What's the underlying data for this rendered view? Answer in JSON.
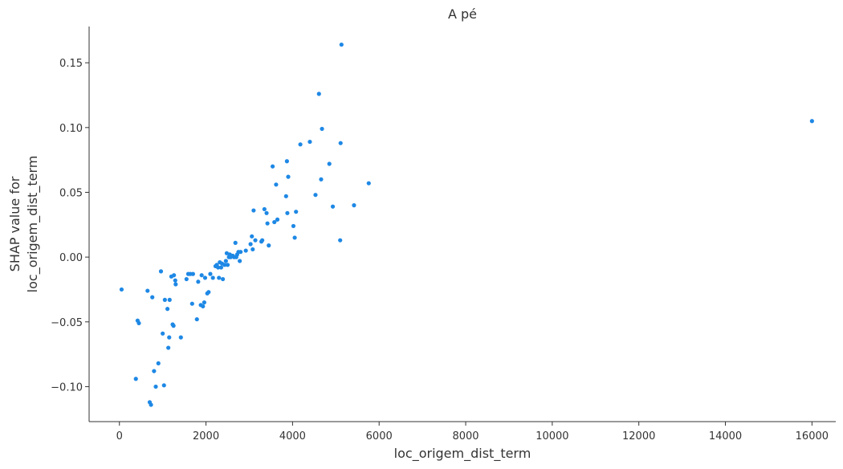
{
  "chart_data": {
    "type": "scatter",
    "title": "A pé",
    "xlabel": "loc_origem_dist_term",
    "ylabel_lines": [
      "SHAP value for",
      "loc_origem_dist_term"
    ],
    "xlim": [
      -700,
      16550
    ],
    "ylim": [
      -0.127,
      0.178
    ],
    "x_ticks": [
      0,
      2000,
      4000,
      6000,
      8000,
      10000,
      12000,
      14000,
      16000
    ],
    "x_tick_labels": [
      "0",
      "2000",
      "4000",
      "6000",
      "8000",
      "10000",
      "12000",
      "14000",
      "16000"
    ],
    "y_ticks": [
      -0.1,
      -0.05,
      0.0,
      0.05,
      0.1,
      0.15
    ],
    "y_tick_labels": [
      "−0.10",
      "−0.05",
      "0.00",
      "0.05",
      "0.10",
      "0.15"
    ],
    "grid": false,
    "point_color": "#1e88e5",
    "points": [
      [
        50,
        -0.025
      ],
      [
        380,
        -0.094
      ],
      [
        420,
        -0.049
      ],
      [
        450,
        -0.051
      ],
      [
        650,
        -0.026
      ],
      [
        700,
        -0.112
      ],
      [
        730,
        -0.114
      ],
      [
        760,
        -0.031
      ],
      [
        800,
        -0.088
      ],
      [
        840,
        -0.1
      ],
      [
        900,
        -0.082
      ],
      [
        960,
        -0.011
      ],
      [
        1000,
        -0.059
      ],
      [
        1030,
        -0.099
      ],
      [
        1050,
        -0.033
      ],
      [
        1110,
        -0.04
      ],
      [
        1130,
        -0.07
      ],
      [
        1150,
        -0.062
      ],
      [
        1160,
        -0.033
      ],
      [
        1200,
        -0.015
      ],
      [
        1230,
        -0.052
      ],
      [
        1250,
        -0.053
      ],
      [
        1260,
        -0.014
      ],
      [
        1290,
        -0.018
      ],
      [
        1300,
        -0.021
      ],
      [
        1420,
        -0.062
      ],
      [
        1550,
        -0.017
      ],
      [
        1590,
        -0.013
      ],
      [
        1640,
        -0.013
      ],
      [
        1680,
        -0.036
      ],
      [
        1700,
        -0.013
      ],
      [
        1790,
        -0.048
      ],
      [
        1820,
        -0.019
      ],
      [
        1880,
        -0.037
      ],
      [
        1900,
        -0.014
      ],
      [
        1930,
        -0.038
      ],
      [
        1960,
        -0.035
      ],
      [
        1980,
        -0.016
      ],
      [
        2030,
        -0.028
      ],
      [
        2060,
        -0.027
      ],
      [
        2100,
        -0.013
      ],
      [
        2160,
        -0.016
      ],
      [
        2220,
        -0.007
      ],
      [
        2250,
        -0.006
      ],
      [
        2280,
        -0.008
      ],
      [
        2300,
        -0.016
      ],
      [
        2320,
        -0.004
      ],
      [
        2350,
        -0.008
      ],
      [
        2370,
        -0.005
      ],
      [
        2390,
        -0.017
      ],
      [
        2430,
        -0.006
      ],
      [
        2460,
        -0.003
      ],
      [
        2480,
        0.003
      ],
      [
        2500,
        -0.006
      ],
      [
        2530,
        0.0
      ],
      [
        2550,
        0.002
      ],
      [
        2570,
        0.0
      ],
      [
        2590,
        0.001
      ],
      [
        2620,
        0.001
      ],
      [
        2650,
        0.0
      ],
      [
        2680,
        0.011
      ],
      [
        2700,
        0.0
      ],
      [
        2720,
        0.002
      ],
      [
        2750,
        0.004
      ],
      [
        2780,
        -0.003
      ],
      [
        2800,
        0.004
      ],
      [
        2920,
        0.005
      ],
      [
        3030,
        0.01
      ],
      [
        3060,
        0.016
      ],
      [
        3080,
        0.006
      ],
      [
        3100,
        0.036
      ],
      [
        3140,
        0.013
      ],
      [
        3280,
        0.012
      ],
      [
        3300,
        0.013
      ],
      [
        3350,
        0.037
      ],
      [
        3400,
        0.034
      ],
      [
        3420,
        0.026
      ],
      [
        3450,
        0.009
      ],
      [
        3540,
        0.07
      ],
      [
        3580,
        0.027
      ],
      [
        3620,
        0.056
      ],
      [
        3650,
        0.029
      ],
      [
        3850,
        0.047
      ],
      [
        3870,
        0.074
      ],
      [
        3880,
        0.034
      ],
      [
        3900,
        0.062
      ],
      [
        4020,
        0.024
      ],
      [
        4050,
        0.015
      ],
      [
        4080,
        0.035
      ],
      [
        4180,
        0.087
      ],
      [
        4400,
        0.089
      ],
      [
        4530,
        0.048
      ],
      [
        4610,
        0.126
      ],
      [
        4660,
        0.06
      ],
      [
        4680,
        0.099
      ],
      [
        4850,
        0.072
      ],
      [
        4930,
        0.039
      ],
      [
        5100,
        0.013
      ],
      [
        5110,
        0.088
      ],
      [
        5130,
        0.164
      ],
      [
        5420,
        0.04
      ],
      [
        5760,
        0.057
      ],
      [
        16000,
        0.105
      ]
    ]
  }
}
